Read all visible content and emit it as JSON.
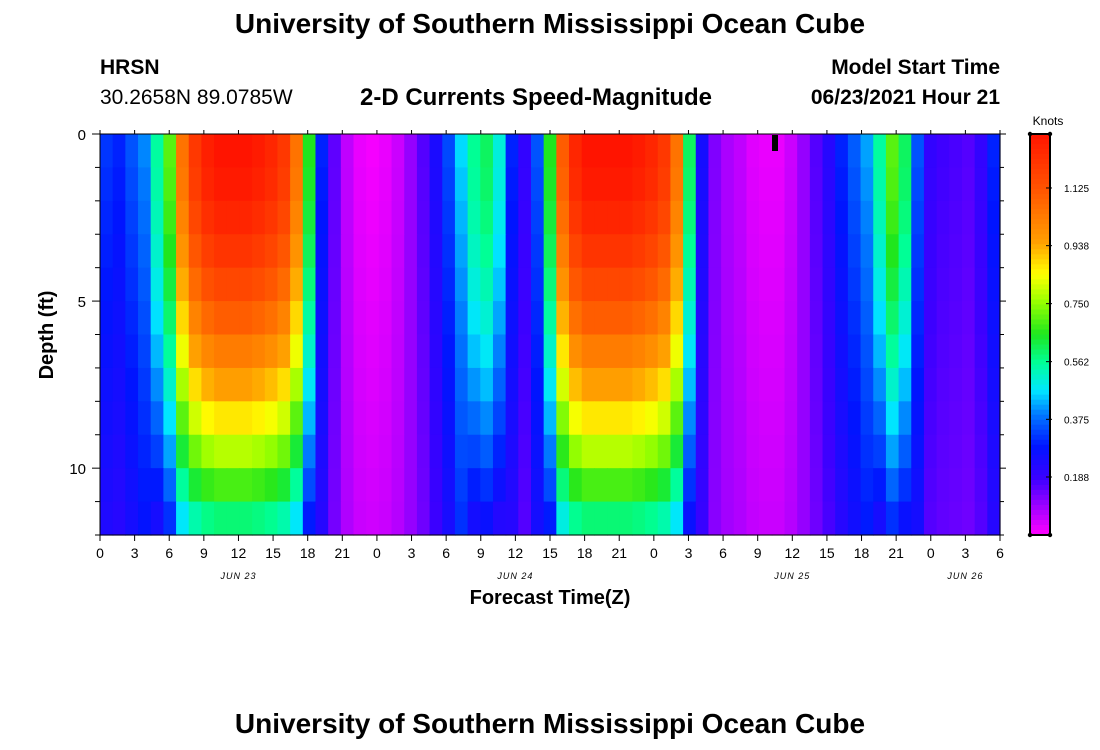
{
  "header": {
    "title": "University of Southern Mississippi Ocean Cube",
    "station": "HRSN",
    "coordinates": "30.2658N  89.0785W",
    "model_start_label": "Model Start Time",
    "model_start_time": "06/23/2021 Hour 21"
  },
  "footer": {
    "title": "University of Southern Mississippi Ocean Cube"
  },
  "chart_data": {
    "type": "heatmap",
    "title": "2-D Currents Speed-Magnitude",
    "xlabel": "Forecast Time(Z)",
    "ylabel": "Depth (ft)",
    "units": "Knots",
    "x_range_hours": [
      0,
      78
    ],
    "y_range_ft": [
      0,
      12
    ],
    "y_ticks": [
      0,
      5,
      10
    ],
    "x_tick_labels": [
      "0",
      "3",
      "6",
      "9",
      "12",
      "15",
      "18",
      "21",
      "0",
      "3",
      "6",
      "9",
      "12",
      "15",
      "18",
      "21",
      "0",
      "3",
      "6",
      "9",
      "12",
      "15",
      "18",
      "21",
      "0",
      "3",
      "6"
    ],
    "date_labels": [
      {
        "label": "JUN 23",
        "hour": 12
      },
      {
        "label": "JUN 24",
        "hour": 36
      },
      {
        "label": "JUN 25",
        "hour": 60
      },
      {
        "label": "JUN 26",
        "hour": 75
      }
    ],
    "colorbar": {
      "min": 0,
      "max": 1.3,
      "tick_values": [
        1.125,
        0.938,
        0.75,
        0.562,
        0.375,
        0.188
      ],
      "tick_labels": [
        "1.125",
        "0.938",
        "0.750",
        "0.562",
        "0.375",
        "0.188"
      ]
    },
    "surface_profile_knots": [
      0.32,
      0.3,
      0.35,
      0.4,
      0.55,
      0.7,
      1.05,
      1.2,
      1.27,
      1.3,
      1.3,
      1.3,
      1.28,
      1.25,
      1.2,
      1.05,
      0.65,
      0.3,
      0.15,
      0.06,
      0.02,
      0.01,
      0.02,
      0.05,
      0.1,
      0.16,
      0.24,
      0.34,
      0.46,
      0.56,
      0.6,
      0.5,
      0.3,
      0.2,
      0.35,
      0.65,
      1.1,
      1.25,
      1.3,
      1.3,
      1.3,
      1.3,
      1.28,
      1.25,
      1.2,
      1.05,
      0.6,
      0.25,
      0.12,
      0.08,
      0.06,
      0.03,
      0.02,
      0.02,
      0.05,
      0.1,
      0.16,
      0.22,
      0.3,
      0.36,
      0.42,
      0.55,
      0.7,
      0.6,
      0.35,
      0.2,
      0.18,
      0.17,
      0.16,
      0.2,
      0.3
    ]
  }
}
